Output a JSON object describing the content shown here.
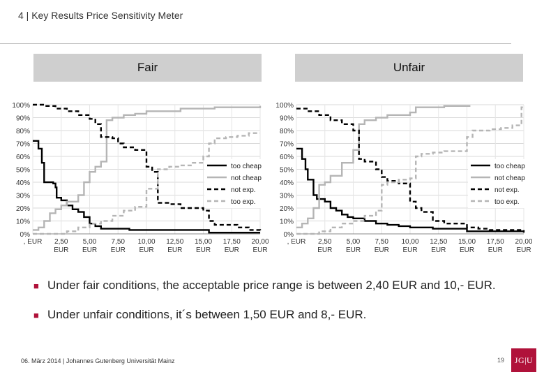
{
  "slide": {
    "title": "4 | Key Results Price Sensitivity Meter",
    "footer": "06. März 2014 | Johannes Gutenberg Universität Mainz",
    "page_number": "19",
    "logo_text": "JG|U"
  },
  "panels": {
    "fair": "Fair",
    "unfair": "Unfair"
  },
  "bullets": [
    "Under fair conditions, the acceptable price range is between 2,40 EUR and 10,- EUR.",
    "Under unfair conditions, it´s between 1,50 EUR and 8,- EUR."
  ],
  "chart_data": [
    {
      "type": "line",
      "title": "Fair",
      "xlim": [
        0,
        20
      ],
      "ylim": [
        0,
        100
      ],
      "y_ticks": [
        "0%",
        "10%",
        "20%",
        "30%",
        "40%",
        "50%",
        "60%",
        "70%",
        "80%",
        "90%",
        "100%"
      ],
      "x_ticks": [
        ", EUR",
        "2,50 EUR",
        "5,00 EUR",
        "7,50 EUR",
        "10,00 EUR",
        "12,50 EUR",
        "15,00 EUR",
        "17,50 EUR",
        "20,00 EUR"
      ],
      "grid": true,
      "legend": "right",
      "series": [
        {
          "name": "too cheap",
          "color": "#000000",
          "style": "solid",
          "points": [
            [
              0,
              72
            ],
            [
              0.5,
              66
            ],
            [
              0.8,
              55
            ],
            [
              1.0,
              40
            ],
            [
              1.8,
              39
            ],
            [
              2.0,
              36
            ],
            [
              2.1,
              28
            ],
            [
              2.5,
              26
            ],
            [
              3.0,
              22
            ],
            [
              3.5,
              19
            ],
            [
              4.0,
              17
            ],
            [
              4.5,
              13
            ],
            [
              5.0,
              8
            ],
            [
              5.5,
              6
            ],
            [
              6.0,
              4
            ],
            [
              8.0,
              4
            ],
            [
              8.5,
              3
            ],
            [
              15.0,
              3
            ],
            [
              15.5,
              1
            ],
            [
              20,
              1
            ]
          ]
        },
        {
          "name": "not cheap",
          "color": "#b5b5b5",
          "style": "solid",
          "points": [
            [
              0,
              3
            ],
            [
              0.5,
              5
            ],
            [
              1.0,
              10
            ],
            [
              1.5,
              16
            ],
            [
              2.0,
              19
            ],
            [
              2.5,
              22
            ],
            [
              3.0,
              25
            ],
            [
              4.0,
              30
            ],
            [
              4.5,
              40
            ],
            [
              5.0,
              48
            ],
            [
              5.5,
              52
            ],
            [
              6.0,
              56
            ],
            [
              6.5,
              88
            ],
            [
              7.0,
              90
            ],
            [
              8.0,
              92
            ],
            [
              9.0,
              93
            ],
            [
              10.0,
              95
            ],
            [
              13.0,
              97
            ],
            [
              16.0,
              98
            ],
            [
              20,
              99
            ]
          ]
        },
        {
          "name": "not exp.",
          "color": "#000000",
          "style": "dashed",
          "points": [
            [
              0,
              100
            ],
            [
              1.0,
              99
            ],
            [
              2.0,
              97
            ],
            [
              3.0,
              95
            ],
            [
              4.0,
              92
            ],
            [
              5.0,
              89
            ],
            [
              5.5,
              85
            ],
            [
              6.0,
              75
            ],
            [
              7.0,
              74
            ],
            [
              7.5,
              70
            ],
            [
              8.0,
              67
            ],
            [
              9.0,
              65
            ],
            [
              10.0,
              52
            ],
            [
              10.5,
              48
            ],
            [
              11.0,
              24
            ],
            [
              12.0,
              23
            ],
            [
              13.0,
              20
            ],
            [
              15.0,
              18
            ],
            [
              15.5,
              10
            ],
            [
              16.0,
              7
            ],
            [
              18.0,
              5
            ],
            [
              19.0,
              3
            ],
            [
              20,
              2
            ]
          ]
        },
        {
          "name": "too exp.",
          "color": "#b5b5b5",
          "style": "dashed",
          "points": [
            [
              0,
              0
            ],
            [
              2.0,
              0
            ],
            [
              3.0,
              2
            ],
            [
              4.0,
              5
            ],
            [
              5.0,
              8
            ],
            [
              6.0,
              10
            ],
            [
              7.0,
              14
            ],
            [
              8.0,
              18
            ],
            [
              9.0,
              21
            ],
            [
              10.0,
              35
            ],
            [
              11.0,
              50
            ],
            [
              12.0,
              52
            ],
            [
              13.0,
              53
            ],
            [
              14.0,
              55
            ],
            [
              15.0,
              60
            ],
            [
              15.5,
              70
            ],
            [
              16.0,
              74
            ],
            [
              17.0,
              75
            ],
            [
              18.0,
              76
            ],
            [
              19.0,
              78
            ],
            [
              19.8,
              78
            ]
          ]
        }
      ]
    },
    {
      "type": "line",
      "title": "Unfair",
      "xlim": [
        0,
        20
      ],
      "ylim": [
        0,
        100
      ],
      "y_ticks": [
        "0%",
        "10%",
        "20%",
        "30%",
        "40%",
        "50%",
        "60%",
        "70%",
        "80%",
        "90%",
        "100%"
      ],
      "x_ticks": [
        ", EUR",
        "2,50 EUR",
        "5,00 EUR",
        "7,50 EUR",
        "10,00 EUR",
        "12,50 EUR",
        "15,00 EUR",
        "17,50 EUR",
        "20,00 EUR"
      ],
      "grid": true,
      "legend": "right",
      "series": [
        {
          "name": "too cheap",
          "color": "#000000",
          "style": "solid",
          "points": [
            [
              0,
              66
            ],
            [
              0.5,
              58
            ],
            [
              0.8,
              50
            ],
            [
              1.0,
              42
            ],
            [
              1.5,
              30
            ],
            [
              1.8,
              27
            ],
            [
              2.5,
              25
            ],
            [
              3.0,
              20
            ],
            [
              3.5,
              18
            ],
            [
              4.0,
              15
            ],
            [
              4.5,
              13
            ],
            [
              5.0,
              12
            ],
            [
              6.0,
              10
            ],
            [
              7.0,
              8
            ],
            [
              8.0,
              7
            ],
            [
              9.0,
              6
            ],
            [
              10.0,
              5
            ],
            [
              12.0,
              4
            ],
            [
              15.0,
              2
            ],
            [
              20,
              1
            ]
          ]
        },
        {
          "name": "not cheap",
          "color": "#b5b5b5",
          "style": "solid",
          "points": [
            [
              0,
              5
            ],
            [
              0.5,
              8
            ],
            [
              1.0,
              12
            ],
            [
              1.5,
              20
            ],
            [
              2.0,
              38
            ],
            [
              2.5,
              40
            ],
            [
              3.0,
              45
            ],
            [
              4.0,
              55
            ],
            [
              5.0,
              65
            ],
            [
              5.5,
              85
            ],
            [
              6.0,
              88
            ],
            [
              7.0,
              90
            ],
            [
              8.0,
              92
            ],
            [
              10.0,
              94
            ],
            [
              10.5,
              98
            ],
            [
              13.0,
              99
            ],
            [
              15.0,
              99
            ]
          ]
        },
        {
          "name": "not exp.",
          "color": "#000000",
          "style": "dashed",
          "points": [
            [
              0,
              97
            ],
            [
              1.0,
              95
            ],
            [
              2.0,
              92
            ],
            [
              3.0,
              88
            ],
            [
              4.0,
              85
            ],
            [
              5.0,
              80
            ],
            [
              5.5,
              58
            ],
            [
              6.0,
              56
            ],
            [
              7.0,
              50
            ],
            [
              7.5,
              44
            ],
            [
              8.0,
              41
            ],
            [
              9.0,
              39
            ],
            [
              10.0,
              25
            ],
            [
              10.5,
              20
            ],
            [
              11.0,
              17
            ],
            [
              12.0,
              10
            ],
            [
              13.0,
              8
            ],
            [
              15.0,
              5
            ],
            [
              16.0,
              4
            ],
            [
              17.0,
              3
            ],
            [
              20,
              2
            ]
          ]
        },
        {
          "name": "too exp.",
          "color": "#b5b5b5",
          "style": "dashed",
          "points": [
            [
              0,
              0
            ],
            [
              1.0,
              0
            ],
            [
              2.0,
              2
            ],
            [
              3.0,
              5
            ],
            [
              4.0,
              8
            ],
            [
              5.0,
              10
            ],
            [
              6.0,
              14
            ],
            [
              7.0,
              18
            ],
            [
              7.5,
              38
            ],
            [
              8.0,
              40
            ],
            [
              9.0,
              42
            ],
            [
              10.0,
              43
            ],
            [
              10.5,
              60
            ],
            [
              11.0,
              62
            ],
            [
              12.0,
              63
            ],
            [
              13.0,
              64
            ],
            [
              15.0,
              75
            ],
            [
              15.5,
              80
            ],
            [
              17.0,
              81
            ],
            [
              18.0,
              82
            ],
            [
              19.0,
              84
            ],
            [
              19.8,
              98
            ]
          ]
        }
      ]
    }
  ]
}
